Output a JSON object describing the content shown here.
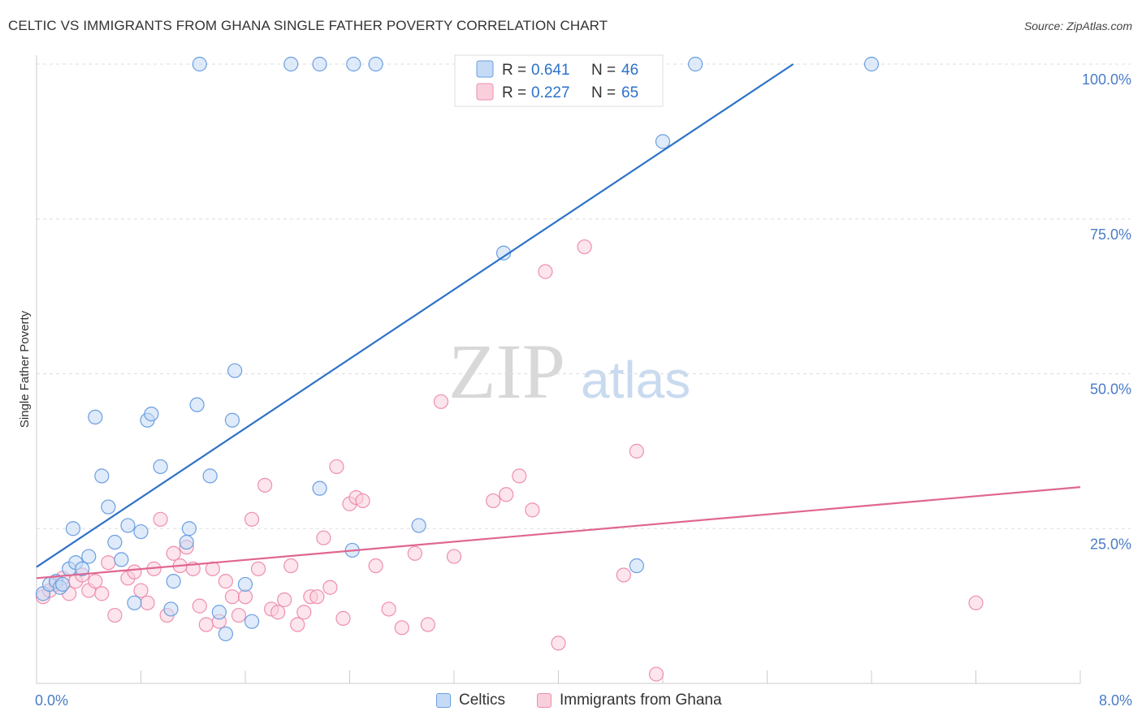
{
  "title": "CELTIC VS IMMIGRANTS FROM GHANA SINGLE FATHER POVERTY CORRELATION CHART",
  "source": "Source: ZipAtlas.com",
  "watermark": {
    "zip": "ZIP",
    "atlas": "atlas"
  },
  "legend_top": [
    {
      "r_label": "R =",
      "r_value": "0.641",
      "n_label": "N =",
      "n_value": "46"
    },
    {
      "r_label": "R =",
      "r_value": "0.227",
      "n_label": "N =",
      "n_value": "65"
    }
  ],
  "chart_data": {
    "type": "scatter",
    "xlabel": "",
    "ylabel": "Single Father Poverty",
    "xlim": [
      0,
      8
    ],
    "ylim": [
      0,
      100
    ],
    "x_tick_labels": [
      "0.0%",
      "8.0%"
    ],
    "y_tick_labels": [
      "100.0%",
      "75.0%",
      "50.0%",
      "25.0%"
    ],
    "y_ticks": [
      100,
      75,
      50,
      25
    ],
    "grid": true,
    "colors": {
      "celtics": "#6b9ee0",
      "ghana": "#ee8fae",
      "celtics_line": "#2d72c8",
      "ghana_line": "#e06690"
    },
    "series": [
      {
        "name": "Celtics",
        "trend": [
          [
            0,
            18.8
          ],
          [
            5.8,
            100
          ]
        ],
        "points": [
          [
            0.05,
            14.5
          ],
          [
            0.1,
            16
          ],
          [
            0.15,
            16.5
          ],
          [
            0.18,
            15.5
          ],
          [
            0.2,
            16
          ],
          [
            0.25,
            18.5
          ],
          [
            0.3,
            19.5
          ],
          [
            0.35,
            18.5
          ],
          [
            0.28,
            25
          ],
          [
            0.4,
            20.5
          ],
          [
            0.45,
            43
          ],
          [
            0.5,
            33.5
          ],
          [
            0.55,
            28.5
          ],
          [
            0.6,
            22.8
          ],
          [
            0.65,
            20
          ],
          [
            0.7,
            25.5
          ],
          [
            0.75,
            13
          ],
          [
            0.8,
            24.5
          ],
          [
            0.85,
            42.5
          ],
          [
            0.88,
            43.5
          ],
          [
            0.95,
            35
          ],
          [
            1.05,
            16.5
          ],
          [
            1.03,
            12
          ],
          [
            1.15,
            22.8
          ],
          [
            1.17,
            25
          ],
          [
            1.23,
            45
          ],
          [
            1.33,
            33.5
          ],
          [
            1.4,
            11.5
          ],
          [
            1.45,
            8
          ],
          [
            1.5,
            42.5
          ],
          [
            1.52,
            50.5
          ],
          [
            1.6,
            16
          ],
          [
            1.65,
            10
          ],
          [
            2.17,
            31.5
          ],
          [
            2.42,
            21.5
          ],
          [
            2.93,
            25.5
          ],
          [
            3.58,
            69.5
          ],
          [
            4.6,
            19
          ],
          [
            4.8,
            87.5
          ],
          [
            1.25,
            100
          ],
          [
            1.95,
            100
          ],
          [
            2.17,
            100
          ],
          [
            2.43,
            100
          ],
          [
            2.6,
            100
          ],
          [
            3.3,
            100
          ],
          [
            5.05,
            100
          ],
          [
            6.4,
            100
          ]
        ]
      },
      {
        "name": "Immigrants from Ghana",
        "trend": [
          [
            0,
            17
          ],
          [
            8,
            31.7
          ]
        ],
        "points": [
          [
            0.05,
            14
          ],
          [
            0.1,
            15
          ],
          [
            0.15,
            16
          ],
          [
            0.2,
            17
          ],
          [
            0.25,
            14.5
          ],
          [
            0.3,
            16.5
          ],
          [
            0.35,
            17.5
          ],
          [
            0.4,
            15
          ],
          [
            0.45,
            16.5
          ],
          [
            0.5,
            14.5
          ],
          [
            0.55,
            19.5
          ],
          [
            0.6,
            11
          ],
          [
            0.7,
            17
          ],
          [
            0.75,
            18
          ],
          [
            0.8,
            15
          ],
          [
            0.85,
            13
          ],
          [
            0.9,
            18.5
          ],
          [
            0.95,
            26.5
          ],
          [
            1.0,
            11
          ],
          [
            1.05,
            21
          ],
          [
            1.1,
            19
          ],
          [
            1.15,
            22
          ],
          [
            1.2,
            18.5
          ],
          [
            1.25,
            12.5
          ],
          [
            1.3,
            9.5
          ],
          [
            1.35,
            18.5
          ],
          [
            1.4,
            10
          ],
          [
            1.45,
            16.5
          ],
          [
            1.5,
            14
          ],
          [
            1.55,
            11
          ],
          [
            1.6,
            14
          ],
          [
            1.65,
            26.5
          ],
          [
            1.7,
            18.5
          ],
          [
            1.75,
            32
          ],
          [
            1.8,
            12
          ],
          [
            1.85,
            11.5
          ],
          [
            1.9,
            13.5
          ],
          [
            1.95,
            19
          ],
          [
            2.0,
            9.5
          ],
          [
            2.05,
            11.5
          ],
          [
            2.1,
            14
          ],
          [
            2.15,
            14
          ],
          [
            2.2,
            23.5
          ],
          [
            2.25,
            15.5
          ],
          [
            2.3,
            35
          ],
          [
            2.35,
            10.5
          ],
          [
            2.4,
            29
          ],
          [
            2.45,
            30
          ],
          [
            2.5,
            29.5
          ],
          [
            2.6,
            19
          ],
          [
            2.7,
            12
          ],
          [
            2.8,
            9
          ],
          [
            2.9,
            21
          ],
          [
            3.0,
            9.5
          ],
          [
            3.1,
            45.5
          ],
          [
            3.2,
            20.5
          ],
          [
            3.5,
            29.5
          ],
          [
            3.6,
            30.5
          ],
          [
            3.7,
            33.5
          ],
          [
            3.8,
            28
          ],
          [
            3.9,
            66.5
          ],
          [
            4.0,
            6.5
          ],
          [
            4.2,
            70.5
          ],
          [
            4.5,
            17.5
          ],
          [
            4.6,
            37.5
          ],
          [
            4.75,
            1.5
          ],
          [
            7.2,
            13
          ]
        ]
      }
    ]
  }
}
